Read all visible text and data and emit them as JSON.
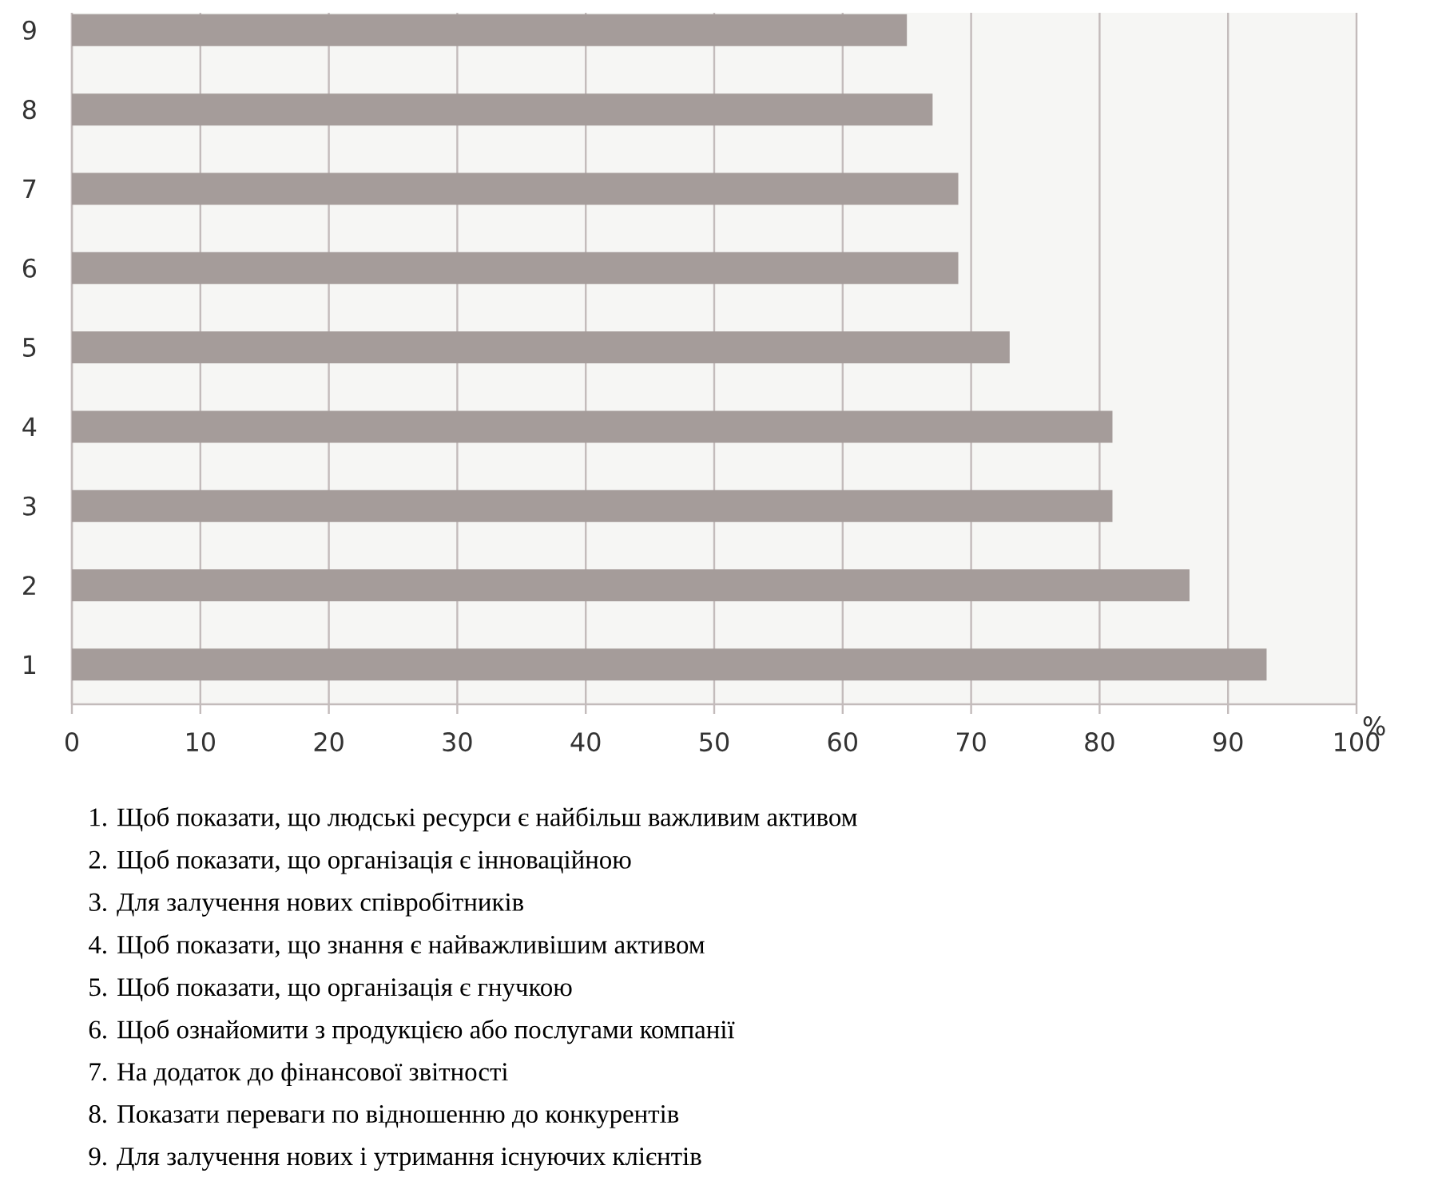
{
  "chart_data": {
    "type": "bar",
    "orientation": "horizontal",
    "categories": [
      "9",
      "8",
      "7",
      "6",
      "5",
      "4",
      "3",
      "2",
      "1"
    ],
    "values": [
      65,
      67,
      69,
      69,
      73,
      81,
      81,
      87,
      93
    ],
    "color": "#a59c9a",
    "xlim": [
      0,
      100
    ],
    "xticks": [
      0,
      10,
      20,
      30,
      40,
      50,
      60,
      70,
      80,
      90,
      100
    ],
    "xlabel": "%",
    "grid": "x",
    "annotations": [
      "1. Щоб показати, що людські ресурси є найбільш важливим активом",
      "2. Щоб показати, що організація є інноваційною",
      "3. Для залучення нових співробітників",
      "4. Щоб показати, що знання є найважливішим активом",
      "5. Щоб показати, що організація є гнучкою",
      "6. Щоб ознайомити з продукцією або послугами компанії",
      "7. На додаток до фінансової звітності",
      "8. Показати переваги по відношенню до конкурентів",
      "9. Для залучення нових і утримання існуючих клієнтів"
    ]
  }
}
